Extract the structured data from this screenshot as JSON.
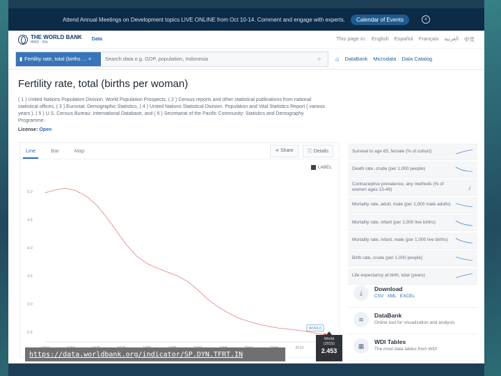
{
  "banner": {
    "text": "Attend Annual Meetings on Development topics LIVE ONLINE from Oct 10-14. Comment and engage with experts.",
    "cta": "Calendar of Events",
    "close": "×"
  },
  "nav": {
    "logo_text": "THE WORLD BANK",
    "logo_sub": "IBRD · IDA",
    "data_link": "Data",
    "lang_label": "This page in:",
    "languages": [
      "English",
      "Español",
      "Français",
      "العربية",
      "中文"
    ]
  },
  "search": {
    "chip_label": "Fertility rate, total (births ...",
    "chip_close": "×",
    "placeholder": "Search data e.g. GDP, population, Indonesia",
    "links": [
      "DataBank",
      "Microdata",
      "Data Catalog"
    ]
  },
  "indicator": {
    "title": "Fertility rate, total (births per woman)",
    "sources": "( 1 ) United Nations Population Division. World Population Prospects, ( 2 ) Census reports and other statistical publications from national statistical offices, ( 3 ) Eurostat: Demographic Statistics, ( 4 ) United Nations Statistical Division. Population and Vital Statistics Report ( various years ), ( 5 ) U.S. Census Bureau: International Database, and ( 6 ) Secretariat of the Pacific Community: Statistics and Demography Programme.",
    "license_label": "License:",
    "license_value": "Open"
  },
  "chart_panel": {
    "tabs": [
      "Line",
      "Bar",
      "Map"
    ],
    "share": "Share",
    "details": "Details",
    "label_toggle": "LABEL",
    "world_tag": "WORLD"
  },
  "chart_data": {
    "type": "line",
    "title": "",
    "xlabel": "",
    "ylabel": "",
    "x_ticks": [
      1960,
      1965,
      1970,
      1975,
      1980,
      1985,
      1990,
      1995,
      2000,
      2005,
      2010,
      2015
    ],
    "y_ticks": [
      2.5,
      3.0,
      3.5,
      4.0,
      4.5,
      5.0
    ],
    "xlim": [
      1960,
      2015
    ],
    "ylim": [
      2.4,
      5.25
    ],
    "grid": false,
    "series": [
      {
        "name": "",
        "color": "#d9534f",
        "x": [
          1960,
          1962,
          1964,
          1966,
          1968,
          1970,
          1972,
          1974,
          1976,
          1978,
          1980,
          1982,
          1984,
          1986,
          1988,
          1990,
          1992,
          1994,
          1996,
          1998,
          2000,
          2002,
          2004,
          2006,
          2008,
          2010,
          2012,
          2015
        ],
        "y": [
          4.98,
          5.03,
          5.06,
          5.02,
          4.92,
          4.77,
          4.55,
          4.3,
          4.05,
          3.85,
          3.72,
          3.64,
          3.57,
          3.5,
          3.4,
          3.25,
          3.08,
          2.95,
          2.84,
          2.75,
          2.69,
          2.64,
          2.6,
          2.57,
          2.55,
          2.53,
          2.5,
          2.453
        ]
      }
    ]
  },
  "tooltip": {
    "label": "World",
    "year": "(2015)",
    "value": "2.453"
  },
  "related": [
    "Survival to age 65, female (% of cohort)",
    "Death rate, crude (per 1,000 people)",
    "Contraceptive prevalence, any methods (% of women ages 15-49)",
    "Mortality rate, adult, male (per 1,000 male adults)",
    "Mortality rate, infant (per 1,000 live births)",
    "Mortality rate, infant, male (per 1,000 live births)",
    "Birth rate, crude (per 1,000 people)",
    "Life expectancy at birth, total (years)"
  ],
  "downloads": {
    "download_title": "Download",
    "formats": [
      "CSV",
      "XML",
      "EXCEL"
    ],
    "databank_title": "DataBank",
    "databank_sub": "Online tool for visualization and analysis",
    "wdi_title": "WDI Tables",
    "wdi_sub": "The most data tables from WDI"
  },
  "url": "https://data.worldbank.org/indicator/SP.DYN.TFRT.IN"
}
